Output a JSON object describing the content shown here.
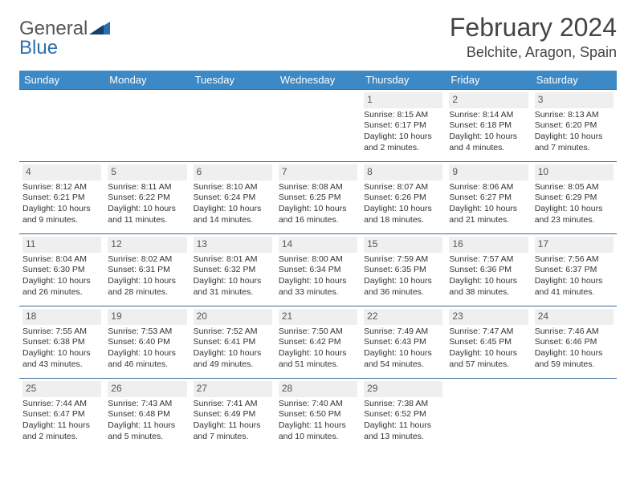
{
  "brand": {
    "part1": "General",
    "part2": "Blue"
  },
  "title": "February 2024",
  "location": "Belchite, Aragon, Spain",
  "colors": {
    "header_bg": "#3c89c6",
    "header_text": "#ffffff",
    "border": "#3c6a9a",
    "daynum_bg": "#efefef",
    "text": "#333333",
    "logo_gray": "#666666",
    "logo_blue": "#2b6fb0"
  },
  "weekdays": [
    "Sunday",
    "Monday",
    "Tuesday",
    "Wednesday",
    "Thursday",
    "Friday",
    "Saturday"
  ],
  "weeks": [
    [
      null,
      null,
      null,
      null,
      {
        "n": "1",
        "sr": "Sunrise: 8:15 AM",
        "ss": "Sunset: 6:17 PM",
        "dl": "Daylight: 10 hours and 2 minutes."
      },
      {
        "n": "2",
        "sr": "Sunrise: 8:14 AM",
        "ss": "Sunset: 6:18 PM",
        "dl": "Daylight: 10 hours and 4 minutes."
      },
      {
        "n": "3",
        "sr": "Sunrise: 8:13 AM",
        "ss": "Sunset: 6:20 PM",
        "dl": "Daylight: 10 hours and 7 minutes."
      }
    ],
    [
      {
        "n": "4",
        "sr": "Sunrise: 8:12 AM",
        "ss": "Sunset: 6:21 PM",
        "dl": "Daylight: 10 hours and 9 minutes."
      },
      {
        "n": "5",
        "sr": "Sunrise: 8:11 AM",
        "ss": "Sunset: 6:22 PM",
        "dl": "Daylight: 10 hours and 11 minutes."
      },
      {
        "n": "6",
        "sr": "Sunrise: 8:10 AM",
        "ss": "Sunset: 6:24 PM",
        "dl": "Daylight: 10 hours and 14 minutes."
      },
      {
        "n": "7",
        "sr": "Sunrise: 8:08 AM",
        "ss": "Sunset: 6:25 PM",
        "dl": "Daylight: 10 hours and 16 minutes."
      },
      {
        "n": "8",
        "sr": "Sunrise: 8:07 AM",
        "ss": "Sunset: 6:26 PM",
        "dl": "Daylight: 10 hours and 18 minutes."
      },
      {
        "n": "9",
        "sr": "Sunrise: 8:06 AM",
        "ss": "Sunset: 6:27 PM",
        "dl": "Daylight: 10 hours and 21 minutes."
      },
      {
        "n": "10",
        "sr": "Sunrise: 8:05 AM",
        "ss": "Sunset: 6:29 PM",
        "dl": "Daylight: 10 hours and 23 minutes."
      }
    ],
    [
      {
        "n": "11",
        "sr": "Sunrise: 8:04 AM",
        "ss": "Sunset: 6:30 PM",
        "dl": "Daylight: 10 hours and 26 minutes."
      },
      {
        "n": "12",
        "sr": "Sunrise: 8:02 AM",
        "ss": "Sunset: 6:31 PM",
        "dl": "Daylight: 10 hours and 28 minutes."
      },
      {
        "n": "13",
        "sr": "Sunrise: 8:01 AM",
        "ss": "Sunset: 6:32 PM",
        "dl": "Daylight: 10 hours and 31 minutes."
      },
      {
        "n": "14",
        "sr": "Sunrise: 8:00 AM",
        "ss": "Sunset: 6:34 PM",
        "dl": "Daylight: 10 hours and 33 minutes."
      },
      {
        "n": "15",
        "sr": "Sunrise: 7:59 AM",
        "ss": "Sunset: 6:35 PM",
        "dl": "Daylight: 10 hours and 36 minutes."
      },
      {
        "n": "16",
        "sr": "Sunrise: 7:57 AM",
        "ss": "Sunset: 6:36 PM",
        "dl": "Daylight: 10 hours and 38 minutes."
      },
      {
        "n": "17",
        "sr": "Sunrise: 7:56 AM",
        "ss": "Sunset: 6:37 PM",
        "dl": "Daylight: 10 hours and 41 minutes."
      }
    ],
    [
      {
        "n": "18",
        "sr": "Sunrise: 7:55 AM",
        "ss": "Sunset: 6:38 PM",
        "dl": "Daylight: 10 hours and 43 minutes."
      },
      {
        "n": "19",
        "sr": "Sunrise: 7:53 AM",
        "ss": "Sunset: 6:40 PM",
        "dl": "Daylight: 10 hours and 46 minutes."
      },
      {
        "n": "20",
        "sr": "Sunrise: 7:52 AM",
        "ss": "Sunset: 6:41 PM",
        "dl": "Daylight: 10 hours and 49 minutes."
      },
      {
        "n": "21",
        "sr": "Sunrise: 7:50 AM",
        "ss": "Sunset: 6:42 PM",
        "dl": "Daylight: 10 hours and 51 minutes."
      },
      {
        "n": "22",
        "sr": "Sunrise: 7:49 AM",
        "ss": "Sunset: 6:43 PM",
        "dl": "Daylight: 10 hours and 54 minutes."
      },
      {
        "n": "23",
        "sr": "Sunrise: 7:47 AM",
        "ss": "Sunset: 6:45 PM",
        "dl": "Daylight: 10 hours and 57 minutes."
      },
      {
        "n": "24",
        "sr": "Sunrise: 7:46 AM",
        "ss": "Sunset: 6:46 PM",
        "dl": "Daylight: 10 hours and 59 minutes."
      }
    ],
    [
      {
        "n": "25",
        "sr": "Sunrise: 7:44 AM",
        "ss": "Sunset: 6:47 PM",
        "dl": "Daylight: 11 hours and 2 minutes."
      },
      {
        "n": "26",
        "sr": "Sunrise: 7:43 AM",
        "ss": "Sunset: 6:48 PM",
        "dl": "Daylight: 11 hours and 5 minutes."
      },
      {
        "n": "27",
        "sr": "Sunrise: 7:41 AM",
        "ss": "Sunset: 6:49 PM",
        "dl": "Daylight: 11 hours and 7 minutes."
      },
      {
        "n": "28",
        "sr": "Sunrise: 7:40 AM",
        "ss": "Sunset: 6:50 PM",
        "dl": "Daylight: 11 hours and 10 minutes."
      },
      {
        "n": "29",
        "sr": "Sunrise: 7:38 AM",
        "ss": "Sunset: 6:52 PM",
        "dl": "Daylight: 11 hours and 13 minutes."
      },
      null,
      null
    ]
  ]
}
